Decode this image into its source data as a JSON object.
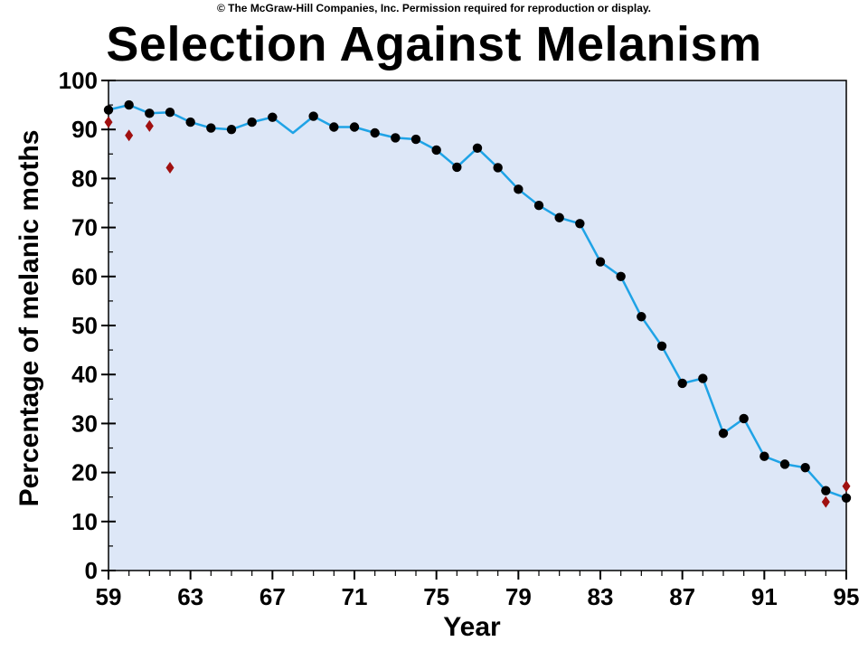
{
  "copyright": "© The McGraw-Hill Companies, Inc. Permission required for reproduction or display.",
  "chart_data": {
    "type": "line",
    "title": "Selection Against Melanism",
    "xlabel": "Year",
    "ylabel": "Percentage of melanic moths",
    "xlim": [
      59,
      95
    ],
    "ylim": [
      0,
      100
    ],
    "x_ticks": [
      59,
      63,
      67,
      71,
      75,
      79,
      83,
      87,
      91,
      95
    ],
    "y_ticks": [
      0,
      10,
      20,
      30,
      40,
      50,
      60,
      70,
      80,
      90,
      100
    ],
    "grid": false,
    "colors": {
      "plot_background": "#dde7f7",
      "line": "#1fa3e6",
      "point": "#000000",
      "diamond": "#a01010"
    },
    "series": [
      {
        "marker": "circle-line",
        "points": [
          [
            59,
            94
          ],
          [
            60,
            95
          ],
          [
            61,
            93.3
          ],
          [
            62,
            93.5
          ],
          [
            63,
            91.5
          ],
          [
            64,
            90.3
          ],
          [
            65,
            90
          ],
          [
            66,
            91.5
          ],
          [
            67,
            92.5
          ],
          [
            68,
            89.3
          ],
          [
            69,
            92.7
          ],
          [
            70,
            90.5
          ],
          [
            71,
            90.5
          ],
          [
            72,
            89.3
          ],
          [
            73,
            88.3
          ],
          [
            74,
            88
          ],
          [
            75,
            85.8
          ],
          [
            76,
            82.3
          ],
          [
            77,
            86.2
          ],
          [
            78,
            82.2
          ],
          [
            79,
            77.8
          ],
          [
            80,
            74.5
          ],
          [
            81,
            72
          ],
          [
            82,
            70.8
          ],
          [
            83,
            63
          ],
          [
            84,
            60
          ],
          [
            85,
            51.8
          ],
          [
            86,
            45.8
          ],
          [
            87,
            38.2
          ],
          [
            88,
            39.2
          ],
          [
            89,
            28
          ],
          [
            90,
            31
          ],
          [
            91,
            23.3
          ],
          [
            92,
            21.7
          ],
          [
            93,
            21
          ],
          [
            94,
            16.3
          ],
          [
            95,
            14.8
          ]
        ],
        "missing_markers": [
          68
        ]
      },
      {
        "marker": "diamond",
        "points": [
          [
            59,
            91.5
          ],
          [
            60,
            88.8
          ],
          [
            61,
            90.7
          ],
          [
            62,
            82.2
          ],
          [
            94,
            14
          ],
          [
            95,
            17.2
          ]
        ]
      }
    ]
  }
}
